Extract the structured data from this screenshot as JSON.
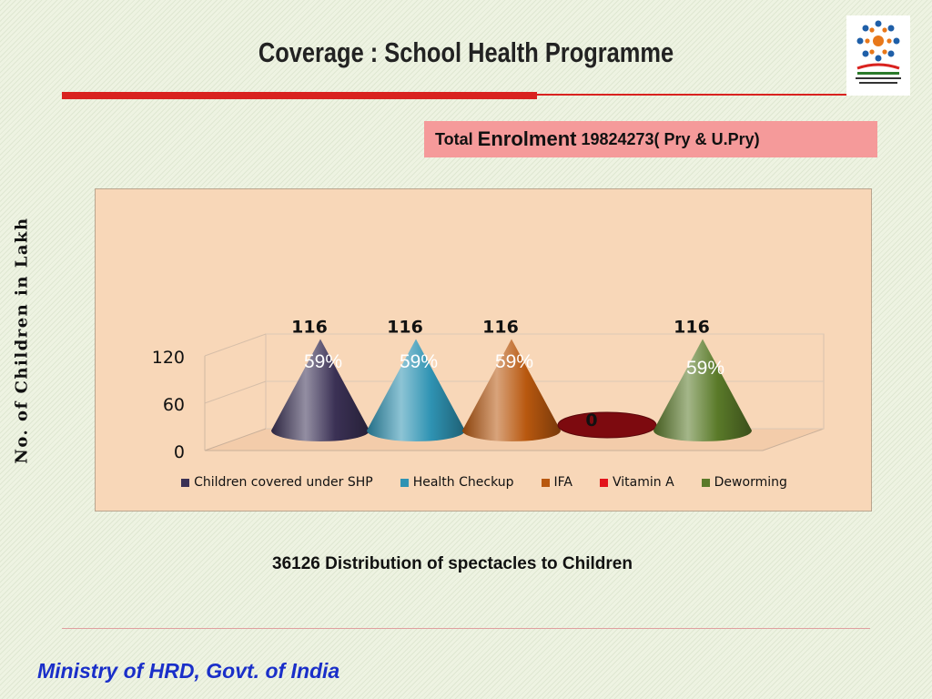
{
  "slide": {
    "title": "Coverage : School Health Programme",
    "enrolment": {
      "prefix": "Total",
      "word": "Enrolment",
      "value": "19824273( Pry & U.Pry)"
    },
    "spectacles_note": "36126 Distribution of spectacles to Children",
    "footer": "Ministry of HRD, Govt. of India",
    "logo_icon": "mid-day-meal-scheme-logo"
  },
  "chart_data": {
    "type": "bar",
    "shape": "cone",
    "ylabel": "No. of Children in Lakh",
    "ylim": [
      0,
      120
    ],
    "yticks": [
      "0",
      "60",
      "120"
    ],
    "series": [
      {
        "name": "Children covered under SHP",
        "value": 116,
        "value_label": "116",
        "percent_label": "59%",
        "color": "#3b3155"
      },
      {
        "name": "Health Checkup",
        "value": 116,
        "value_label": "116",
        "percent_label": "59%",
        "color": "#2f93b3"
      },
      {
        "name": "IFA",
        "value": 116,
        "value_label": "116",
        "percent_label": "59%",
        "color": "#b8580f"
      },
      {
        "name": "Vitamin A",
        "value": 0,
        "value_label": "0",
        "percent_label": "",
        "color": "#e3131b"
      },
      {
        "name": "Deworming",
        "value": 116,
        "value_label": "116",
        "percent_label": "59%",
        "color": "#5a7a29"
      }
    ],
    "legend_position": "bottom",
    "grid": true
  }
}
